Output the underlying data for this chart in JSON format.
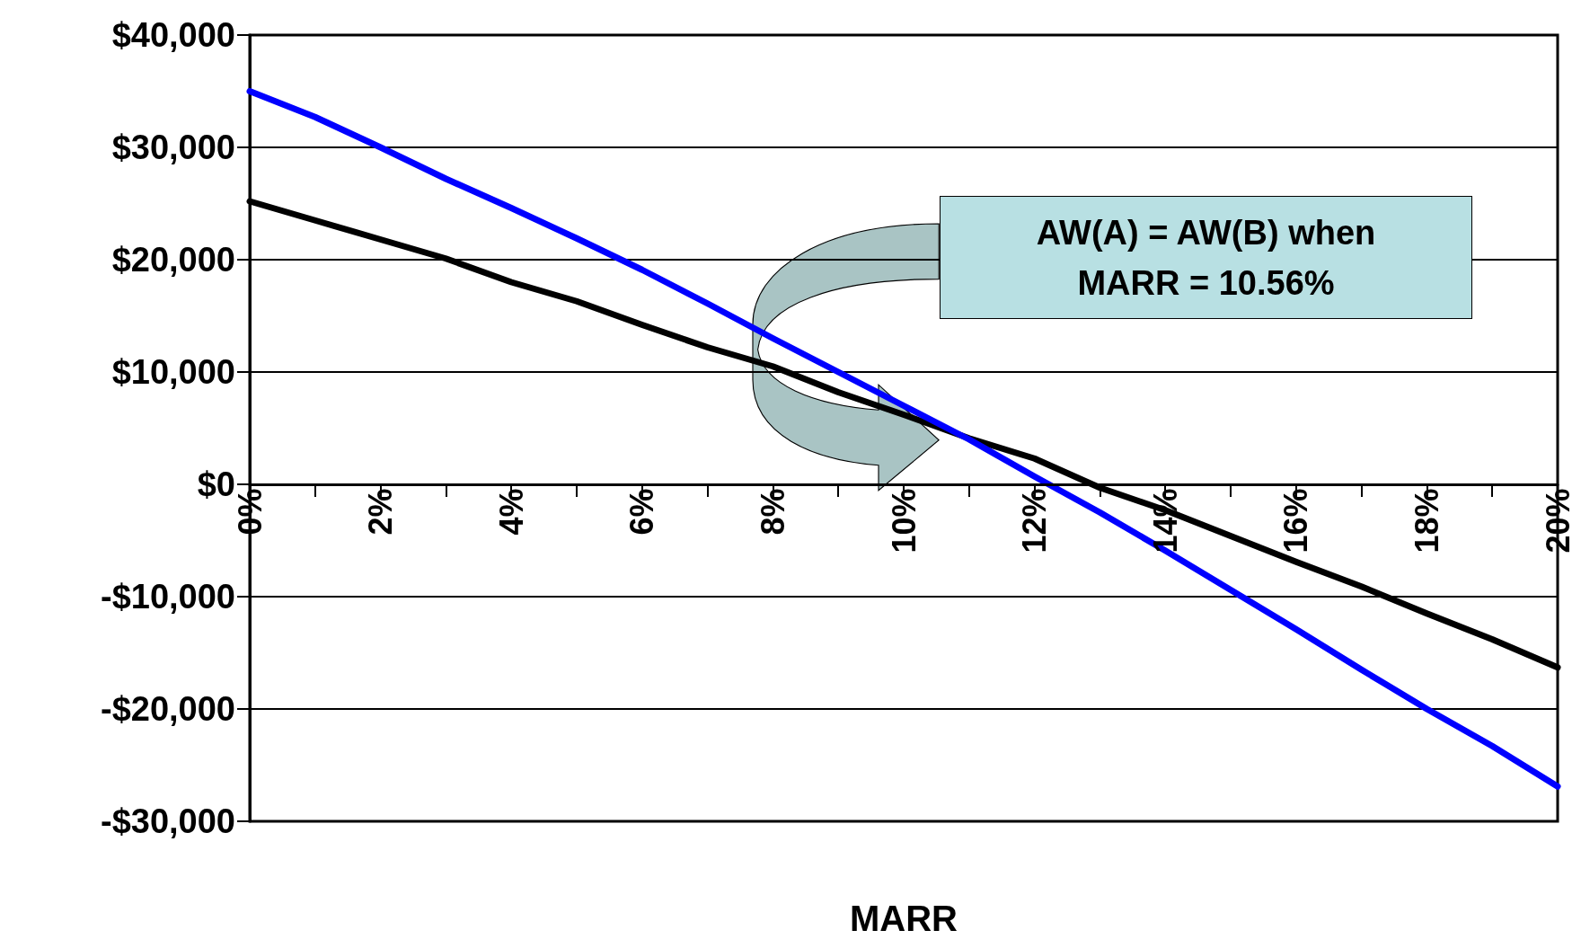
{
  "chart_data": {
    "type": "line",
    "xlabel": "MARR",
    "x": [
      0,
      1,
      2,
      3,
      4,
      5,
      6,
      7,
      8,
      9,
      10,
      11,
      12,
      13,
      14,
      15,
      16,
      17,
      18,
      19,
      20
    ],
    "series": [
      {
        "color": "#000000",
        "values": [
          25200,
          23500,
          21800,
          20100,
          18000,
          16300,
          14200,
          12200,
          10500,
          8200,
          6200,
          4100,
          2300,
          -300,
          -2300,
          -4600,
          -6900,
          -9100,
          -11500,
          -13800,
          -16300
        ]
      },
      {
        "color": "#0000ff",
        "values": [
          35000,
          32700,
          30000,
          27200,
          24600,
          21900,
          19100,
          16100,
          13000,
          10000,
          7000,
          4000,
          700,
          -2500,
          -5900,
          -9400,
          -12900,
          -16500,
          -20000,
          -23300,
          -26900
        ]
      }
    ],
    "xlim": [
      0,
      20
    ],
    "xticks": [
      {
        "value": 0,
        "label": "0%"
      },
      {
        "value": 1,
        "label": null
      },
      {
        "value": 2,
        "label": "2%"
      },
      {
        "value": 3,
        "label": null
      },
      {
        "value": 4,
        "label": "4%"
      },
      {
        "value": 5,
        "label": null
      },
      {
        "value": 6,
        "label": "6%"
      },
      {
        "value": 7,
        "label": null
      },
      {
        "value": 8,
        "label": "8%"
      },
      {
        "value": 9,
        "label": null
      },
      {
        "value": 10,
        "label": "10%"
      },
      {
        "value": 11,
        "label": null
      },
      {
        "value": 12,
        "label": "12%"
      },
      {
        "value": 13,
        "label": null
      },
      {
        "value": 14,
        "label": "14%"
      },
      {
        "value": 15,
        "label": null
      },
      {
        "value": 16,
        "label": "16%"
      },
      {
        "value": 17,
        "label": null
      },
      {
        "value": 18,
        "label": "18%"
      },
      {
        "value": 19,
        "label": null
      },
      {
        "value": 20,
        "label": "20%"
      }
    ],
    "ylim": [
      -30000,
      40000
    ],
    "yticks": [
      {
        "value": -30000,
        "label": "-$30,000"
      },
      {
        "value": -20000,
        "label": "-$20,000"
      },
      {
        "value": -10000,
        "label": "-$10,000"
      },
      {
        "value": 0,
        "label": "$0"
      },
      {
        "value": 10000,
        "label": "$10,000"
      },
      {
        "value": 20000,
        "label": "$20,000"
      },
      {
        "value": 30000,
        "label": "$30,000"
      },
      {
        "value": 40000,
        "label": "$40,000"
      }
    ],
    "annotations": [
      "AW(A) = AW(B) when\nMARR = 10.56%"
    ],
    "grid": "y",
    "marker": "none",
    "line_style": "solid"
  }
}
